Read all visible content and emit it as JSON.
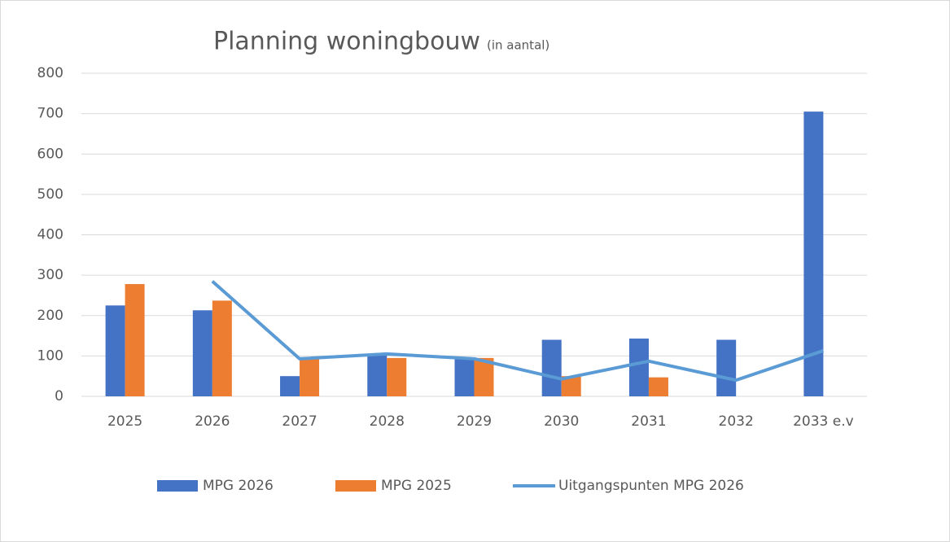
{
  "chart_data": {
    "type": "bar",
    "title": "Planning woningbouw",
    "title_note": "(in aantal)",
    "categories": [
      "2025",
      "2026",
      "2027",
      "2028",
      "2029",
      "2030",
      "2031",
      "2032",
      "2033 e.v"
    ],
    "series": [
      {
        "name": "MPG 2026",
        "color": "#4472c4",
        "values": [
          225,
          213,
          50,
          105,
          92,
          140,
          143,
          140,
          705
        ]
      },
      {
        "name": "MPG 2025",
        "color": "#ed7d31",
        "values": [
          278,
          237,
          93,
          95,
          95,
          50,
          47,
          null,
          null
        ]
      },
      {
        "name": "Uitgangspunten MPG 2026",
        "type": "line",
        "color": "#5b9bd5",
        "values": [
          null,
          285,
          93,
          105,
          93,
          43,
          87,
          40,
          113
        ]
      }
    ],
    "ylim": [
      0,
      800
    ],
    "yticks": [
      0,
      100,
      200,
      300,
      400,
      500,
      600,
      700,
      800
    ],
    "grid": true,
    "legend": "bottom"
  }
}
